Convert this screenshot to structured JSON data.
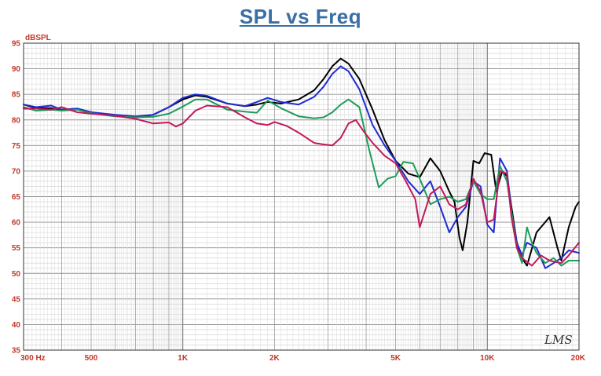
{
  "chart_data": {
    "type": "line",
    "title": "SPL vs Freq",
    "ylabel": "dBSPL",
    "xlabel": "",
    "x_scale": "log",
    "xlim": [
      300,
      20000
    ],
    "ylim": [
      35,
      95
    ],
    "grid": true,
    "watermark": "LMS",
    "x_tick_labels": [
      {
        "value": 300,
        "label": "300  Hz"
      },
      {
        "value": 500,
        "label": "500"
      },
      {
        "value": 1000,
        "label": "1K"
      },
      {
        "value": 2000,
        "label": "2K"
      },
      {
        "value": 5000,
        "label": "5K"
      },
      {
        "value": 10000,
        "label": "10K"
      },
      {
        "value": 20000,
        "label": "20K"
      }
    ],
    "y_tick_labels": [
      "35",
      "40",
      "45",
      "50",
      "55",
      "60",
      "65",
      "70",
      "75",
      "80",
      "85",
      "90",
      "95"
    ],
    "series": [
      {
        "color": "#000000",
        "points": [
          [
            300,
            83
          ],
          [
            330,
            82.3
          ],
          [
            370,
            82.3
          ],
          [
            400,
            82
          ],
          [
            450,
            82.2
          ],
          [
            500,
            81.5
          ],
          [
            600,
            80.8
          ],
          [
            700,
            80.5
          ],
          [
            800,
            81
          ],
          [
            900,
            82.5
          ],
          [
            1000,
            84
          ],
          [
            1100,
            84.8
          ],
          [
            1200,
            84.5
          ],
          [
            1400,
            83.2
          ],
          [
            1600,
            82.7
          ],
          [
            1750,
            83
          ],
          [
            1900,
            83.5
          ],
          [
            2100,
            83.2
          ],
          [
            2400,
            84
          ],
          [
            2700,
            85.8
          ],
          [
            2900,
            88
          ],
          [
            3100,
            90.5
          ],
          [
            3300,
            92
          ],
          [
            3500,
            91
          ],
          [
            3800,
            88
          ],
          [
            4200,
            82
          ],
          [
            4600,
            76
          ],
          [
            5000,
            72
          ],
          [
            5500,
            69.5
          ],
          [
            6000,
            68.8
          ],
          [
            6500,
            72.5
          ],
          [
            7000,
            70
          ],
          [
            7500,
            66
          ],
          [
            7800,
            64
          ],
          [
            8100,
            57
          ],
          [
            8300,
            54.5
          ],
          [
            8600,
            60
          ],
          [
            9000,
            72
          ],
          [
            9400,
            71.5
          ],
          [
            9800,
            73.5
          ],
          [
            10300,
            73.2
          ],
          [
            10700,
            66
          ],
          [
            11200,
            70
          ],
          [
            11600,
            69
          ],
          [
            12000,
            63
          ],
          [
            12500,
            56
          ],
          [
            13000,
            53
          ],
          [
            13500,
            51.5
          ],
          [
            14500,
            58
          ],
          [
            16000,
            61
          ],
          [
            17000,
            55
          ],
          [
            17500,
            52.5
          ],
          [
            18500,
            59
          ],
          [
            19500,
            63
          ],
          [
            20000,
            64
          ]
        ]
      },
      {
        "color": "#1f2bd4",
        "points": [
          [
            300,
            83
          ],
          [
            330,
            82.5
          ],
          [
            370,
            82.8
          ],
          [
            400,
            82
          ],
          [
            450,
            82.2
          ],
          [
            500,
            81.5
          ],
          [
            600,
            81
          ],
          [
            700,
            80.7
          ],
          [
            800,
            81
          ],
          [
            900,
            82.5
          ],
          [
            1000,
            84.3
          ],
          [
            1100,
            85
          ],
          [
            1200,
            84.7
          ],
          [
            1400,
            83.2
          ],
          [
            1600,
            82.7
          ],
          [
            1750,
            83.5
          ],
          [
            1900,
            84.3
          ],
          [
            2100,
            83.5
          ],
          [
            2400,
            83
          ],
          [
            2700,
            84.5
          ],
          [
            2900,
            86.5
          ],
          [
            3100,
            89
          ],
          [
            3300,
            90.5
          ],
          [
            3500,
            89.5
          ],
          [
            3800,
            86
          ],
          [
            4200,
            79
          ],
          [
            4600,
            75
          ],
          [
            5000,
            72
          ],
          [
            5500,
            68
          ],
          [
            6000,
            65.5
          ],
          [
            6500,
            68
          ],
          [
            7000,
            63
          ],
          [
            7500,
            58
          ],
          [
            8000,
            61
          ],
          [
            8500,
            63
          ],
          [
            9000,
            68
          ],
          [
            9500,
            67
          ],
          [
            10000,
            59.5
          ],
          [
            10500,
            58
          ],
          [
            11000,
            72.5
          ],
          [
            11600,
            70
          ],
          [
            12000,
            62
          ],
          [
            12500,
            56
          ],
          [
            13000,
            53.5
          ],
          [
            13500,
            56
          ],
          [
            14500,
            55
          ],
          [
            15500,
            51
          ],
          [
            16500,
            52
          ],
          [
            17500,
            53
          ],
          [
            18500,
            54.5
          ],
          [
            20000,
            54
          ]
        ]
      },
      {
        "color": "#1f9b5a",
        "points": [
          [
            300,
            82.5
          ],
          [
            330,
            81.8
          ],
          [
            370,
            82
          ],
          [
            400,
            81.8
          ],
          [
            450,
            82
          ],
          [
            500,
            81.3
          ],
          [
            600,
            80.7
          ],
          [
            700,
            80.5
          ],
          [
            800,
            80.6
          ],
          [
            900,
            81.2
          ],
          [
            1000,
            82.6
          ],
          [
            1100,
            84
          ],
          [
            1200,
            84
          ],
          [
            1400,
            82
          ],
          [
            1600,
            81.6
          ],
          [
            1750,
            81.4
          ],
          [
            1900,
            83.8
          ],
          [
            2100,
            82.3
          ],
          [
            2400,
            80.7
          ],
          [
            2700,
            80.3
          ],
          [
            2900,
            80.5
          ],
          [
            3100,
            81.5
          ],
          [
            3300,
            83
          ],
          [
            3500,
            84
          ],
          [
            3800,
            82.5
          ],
          [
            4100,
            74
          ],
          [
            4400,
            66.8
          ],
          [
            4700,
            68.5
          ],
          [
            5000,
            69
          ],
          [
            5300,
            71.8
          ],
          [
            5700,
            71.5
          ],
          [
            6000,
            68.5
          ],
          [
            6500,
            63.5
          ],
          [
            7000,
            64.5
          ],
          [
            7500,
            65
          ],
          [
            8000,
            64
          ],
          [
            8500,
            64.5
          ],
          [
            9000,
            68
          ],
          [
            9500,
            65.5
          ],
          [
            10000,
            64.5
          ],
          [
            10500,
            64.5
          ],
          [
            11000,
            71
          ],
          [
            11600,
            68
          ],
          [
            12000,
            62
          ],
          [
            12500,
            55
          ],
          [
            13000,
            52
          ],
          [
            13500,
            59
          ],
          [
            14000,
            56
          ],
          [
            14500,
            54
          ],
          [
            15500,
            52
          ],
          [
            16500,
            53
          ],
          [
            17500,
            51.5
          ],
          [
            18500,
            52.5
          ],
          [
            20000,
            52.5
          ]
        ]
      },
      {
        "color": "#c2185b",
        "points": [
          [
            300,
            82.2
          ],
          [
            330,
            82.2
          ],
          [
            370,
            82
          ],
          [
            400,
            82.5
          ],
          [
            450,
            81.5
          ],
          [
            500,
            81.2
          ],
          [
            600,
            80.8
          ],
          [
            700,
            80.2
          ],
          [
            800,
            79.3
          ],
          [
            900,
            79.5
          ],
          [
            950,
            78.7
          ],
          [
            1000,
            79.3
          ],
          [
            1100,
            81.8
          ],
          [
            1200,
            82.8
          ],
          [
            1400,
            82.5
          ],
          [
            1600,
            80.5
          ],
          [
            1750,
            79.3
          ],
          [
            1900,
            79
          ],
          [
            2000,
            79.6
          ],
          [
            2200,
            78.8
          ],
          [
            2400,
            77.5
          ],
          [
            2700,
            75.5
          ],
          [
            2900,
            75.2
          ],
          [
            3100,
            75
          ],
          [
            3300,
            76.5
          ],
          [
            3500,
            79.3
          ],
          [
            3700,
            80
          ],
          [
            3900,
            78
          ],
          [
            4200,
            75.5
          ],
          [
            4600,
            73
          ],
          [
            5000,
            71.5
          ],
          [
            5400,
            68
          ],
          [
            5800,
            64.5
          ],
          [
            6000,
            59
          ],
          [
            6500,
            65.5
          ],
          [
            7000,
            67
          ],
          [
            7500,
            63.5
          ],
          [
            8000,
            62.5
          ],
          [
            8500,
            63.5
          ],
          [
            9000,
            68.5
          ],
          [
            9500,
            66
          ],
          [
            10000,
            60
          ],
          [
            10500,
            60.5
          ],
          [
            11000,
            70
          ],
          [
            11600,
            69.5
          ],
          [
            12000,
            61
          ],
          [
            12500,
            55
          ],
          [
            13000,
            53
          ],
          [
            14000,
            51.5
          ],
          [
            15000,
            53.5
          ],
          [
            16000,
            52.5
          ],
          [
            17500,
            52
          ],
          [
            18500,
            53.5
          ],
          [
            20000,
            56
          ]
        ]
      }
    ]
  }
}
